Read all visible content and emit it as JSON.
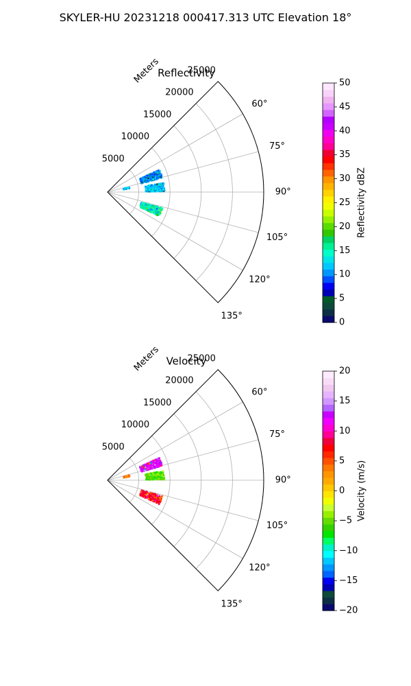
{
  "suptitle": "SKYLER-HU  20231218  000417.313 UTC Elevation 18°",
  "chart_data": [
    {
      "type": "polar-sector",
      "title": "Reflectivity",
      "radial_label": "Meters",
      "radial_ticks": [
        "5000",
        "10000",
        "15000",
        "20000",
        "25000"
      ],
      "radial_tick_values": [
        5000,
        10000,
        15000,
        20000,
        25000
      ],
      "rmax": 25000,
      "angular_ticks": [
        "60°",
        "75°",
        "90°",
        "105°",
        "120°",
        "135°"
      ],
      "angular_tick_values": [
        60,
        75,
        90,
        105,
        120,
        135
      ],
      "theta_range": [
        45,
        135
      ],
      "grid": true,
      "clusters": [
        {
          "azimuth": 70,
          "range_min": 5500,
          "range_max": 9000,
          "levels": [
            3,
            10,
            13,
            17
          ],
          "dominant": 10
        },
        {
          "azimuth": 84,
          "range_min": 6000,
          "range_max": 9000,
          "levels": [
            3,
            10,
            13
          ],
          "dominant": 12
        },
        {
          "azimuth": 110,
          "range_min": 5500,
          "range_max": 9000,
          "levels": [
            10,
            13,
            17,
            20
          ],
          "dominant": 15
        },
        {
          "azimuth": 76,
          "range_min": 2500,
          "range_max": 3500,
          "levels": [
            10,
            15
          ],
          "dominant": 12
        }
      ],
      "colorbar": {
        "label": "Reflectivity dBZ",
        "min": 0,
        "max": 50,
        "ticks": [
          "0",
          "5",
          "10",
          "15",
          "20",
          "25",
          "30",
          "35",
          "40",
          "45",
          "50"
        ],
        "colors": [
          "#0a0a6e",
          "#0d2e45",
          "#0d4a3a",
          "#005a2a",
          "#0000b4",
          "#0000f0",
          "#0050ff",
          "#0096ff",
          "#00c8ff",
          "#00e6e6",
          "#00ffc8",
          "#00f096",
          "#00d264",
          "#32c800",
          "#5adc00",
          "#96f000",
          "#c8ff00",
          "#f0ff00",
          "#fff000",
          "#ffd200",
          "#ffb400",
          "#ff9600",
          "#ff6400",
          "#ff3200",
          "#ff0000",
          "#f00032",
          "#ff0096",
          "#ff00c8",
          "#f000f0",
          "#c800ff",
          "#b400ff",
          "#d264ff",
          "#e696ff",
          "#f0b4f0",
          "#f8d2f8",
          "#ffe6ff"
        ]
      }
    },
    {
      "type": "polar-sector",
      "title": "Velocity",
      "radial_label": "Meters",
      "radial_ticks": [
        "5000",
        "10000",
        "15000",
        "20000",
        "25000"
      ],
      "radial_tick_values": [
        5000,
        10000,
        15000,
        20000,
        25000
      ],
      "rmax": 25000,
      "angular_ticks": [
        "60°",
        "75°",
        "90°",
        "105°",
        "120°",
        "135°"
      ],
      "angular_tick_values": [
        60,
        75,
        90,
        105,
        120,
        135
      ],
      "theta_range": [
        45,
        135
      ],
      "grid": true,
      "clusters": [
        {
          "azimuth": 70,
          "range_min": 5500,
          "range_max": 9000,
          "levels": [
            -13,
            12,
            15,
            5
          ],
          "dominant": 12
        },
        {
          "azimuth": 84,
          "range_min": 6000,
          "range_max": 9000,
          "levels": [
            -4,
            -6,
            -8
          ],
          "dominant": -5
        },
        {
          "azimuth": 110,
          "range_min": 5500,
          "range_max": 9000,
          "levels": [
            10,
            15,
            3,
            5
          ],
          "dominant": 8
        },
        {
          "azimuth": 76,
          "range_min": 2500,
          "range_max": 3500,
          "levels": [
            3,
            5
          ],
          "dominant": 4
        }
      ],
      "colorbar": {
        "label": "Velocity (m/s)",
        "min": -20,
        "max": 20,
        "ticks": [
          "−20",
          "−15",
          "−10",
          "−5",
          "0",
          "5",
          "10",
          "15",
          "20"
        ],
        "colors": [
          "#0a0a6e",
          "#0d2e45",
          "#0d4a3a",
          "#0000b4",
          "#0000f0",
          "#0064ff",
          "#0096ff",
          "#00c8ff",
          "#00ffff",
          "#00f0c8",
          "#00ff64",
          "#00e600",
          "#32d200",
          "#64dc00",
          "#96f000",
          "#c8ff32",
          "#f0ff00",
          "#ffe600",
          "#ffc800",
          "#ffaa00",
          "#ff9600",
          "#ff7800",
          "#ff5000",
          "#ff2800",
          "#ff0000",
          "#f0003c",
          "#ff0096",
          "#ff00d2",
          "#f000ff",
          "#c800ff",
          "#b464ff",
          "#d296ff",
          "#e6b4ff",
          "#f0c8f0",
          "#f8dcf8",
          "#ffebff"
        ]
      }
    }
  ]
}
